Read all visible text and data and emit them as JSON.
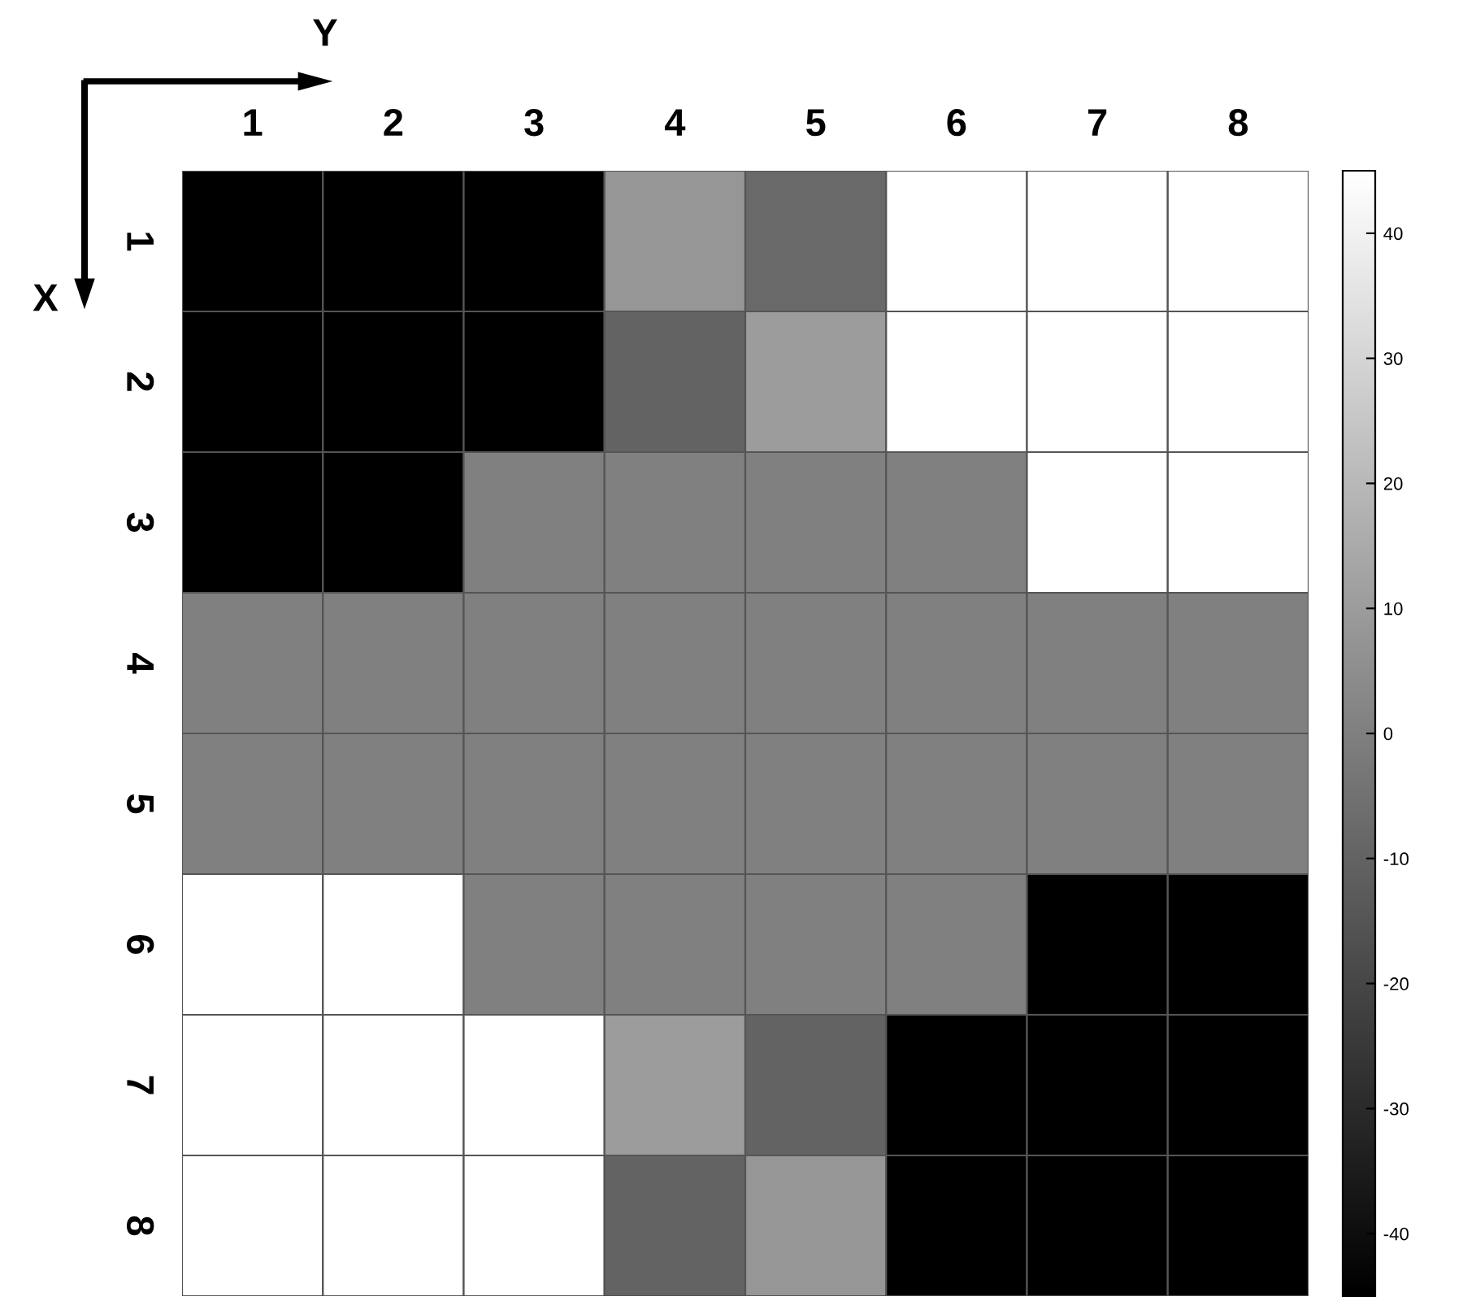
{
  "chart_data": {
    "type": "heatmap",
    "xlabel": "Y",
    "ylabel": "X",
    "categories": [
      "1",
      "2",
      "3",
      "4",
      "5",
      "6",
      "7",
      "8"
    ],
    "y_categories": [
      "1",
      "2",
      "3",
      "4",
      "5",
      "6",
      "7",
      "8"
    ],
    "cells": [
      [
        -45,
        -45,
        -45,
        8,
        -8,
        45,
        45,
        45
      ],
      [
        -45,
        -45,
        -45,
        -10,
        10,
        45,
        45,
        45
      ],
      [
        -45,
        -45,
        0,
        0,
        0,
        0,
        45,
        45
      ],
      [
        0,
        0,
        0,
        0,
        0,
        0,
        0,
        0
      ],
      [
        0,
        0,
        0,
        0,
        0,
        0,
        0,
        0
      ],
      [
        45,
        45,
        0,
        0,
        0,
        0,
        -45,
        -45
      ],
      [
        45,
        45,
        45,
        10,
        -10,
        -45,
        -45,
        -45
      ],
      [
        45,
        45,
        45,
        -10,
        8,
        -45,
        -45,
        -45
      ]
    ],
    "clim": [
      -45,
      45
    ],
    "cticks": [
      -40,
      -30,
      -20,
      -10,
      0,
      10,
      20,
      30,
      40
    ]
  }
}
